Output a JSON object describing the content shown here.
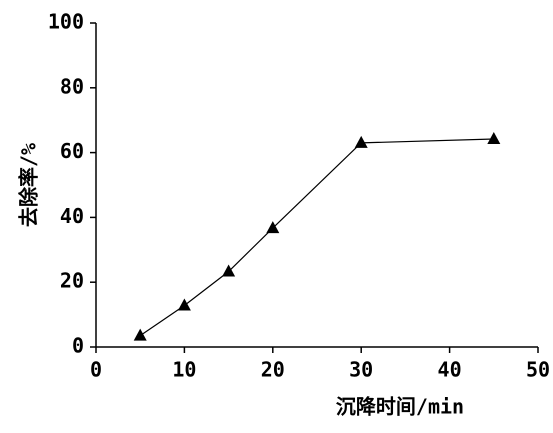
{
  "chart_data": {
    "type": "line",
    "x_label": "沉降时间/min",
    "y_label": "去除率/%",
    "x": [
      5,
      10,
      15,
      20,
      30,
      45
    ],
    "series": [
      {
        "color": "#000000",
        "marker": "triangle",
        "values": [
          3.5,
          12.8,
          23.3,
          36.7,
          63,
          64.2
        ]
      }
    ],
    "xlim": [
      0,
      50
    ],
    "xticks": [
      0,
      10,
      20,
      30,
      40,
      50
    ],
    "ylim": [
      0,
      100
    ],
    "yticks": [
      0,
      20,
      40,
      60,
      80,
      100
    ],
    "grid": false
  }
}
